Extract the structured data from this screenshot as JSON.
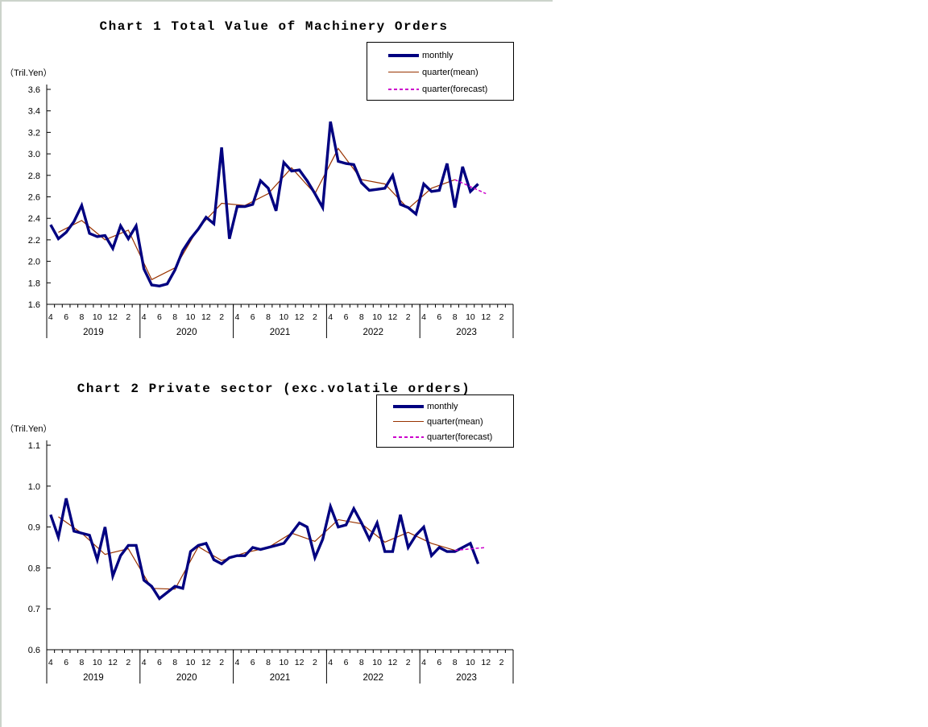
{
  "page": {
    "background": "#ffffff",
    "border_strip_color": "#ccd3cb"
  },
  "chart_data": [
    {
      "type": "line",
      "title": "Chart 1 Total Value of Machinery Orders",
      "ylabel": "（Tril.Yen）",
      "ylim": [
        1.6,
        3.6
      ],
      "ytick_step": 0.2,
      "ytick_labels": [
        "3.6",
        "3.4",
        "3.2",
        "3.0",
        "2.8",
        "2.6",
        "2.4",
        "2.2",
        "2.0",
        "1.8",
        "1.6"
      ],
      "x_axis": {
        "month_label_cycle": [
          "4",
          "6",
          "8",
          "10",
          "12",
          "2"
        ],
        "years": [
          "2019",
          "2020",
          "2021",
          "2022",
          "2023"
        ],
        "months_span": 60,
        "x_start_month": "2019-04",
        "last_monthly_point": "2023-11"
      },
      "grid": false,
      "legend_position": "top-right",
      "series_labels": [
        "monthly",
        "quarter(mean)",
        "quarter(forecast)"
      ],
      "series": [
        {
          "name": "monthly",
          "color": "#000080",
          "style": "thick-solid",
          "values": [
            2.34,
            2.21,
            2.27,
            2.37,
            2.52,
            2.26,
            2.23,
            2.24,
            2.12,
            2.33,
            2.21,
            2.33,
            1.93,
            1.78,
            1.77,
            1.79,
            1.92,
            2.1,
            2.21,
            2.3,
            2.41,
            2.35,
            3.06,
            2.21,
            2.51,
            2.51,
            2.53,
            2.75,
            2.68,
            2.47,
            2.92,
            2.84,
            2.85,
            2.75,
            2.63,
            2.5,
            3.3,
            2.93,
            2.91,
            2.9,
            2.73,
            2.66,
            2.67,
            2.68,
            2.8,
            2.53,
            2.5,
            2.44,
            2.72,
            2.65,
            2.66,
            2.91,
            2.5,
            2.88,
            2.65,
            2.72
          ]
        },
        {
          "name": "quarter(mean)",
          "color": "#993300",
          "style": "thin-solid",
          "plotted_at": "middle month of each quarter",
          "values": [
            2.27,
            2.38,
            2.2,
            2.29,
            1.83,
            1.94,
            2.31,
            2.54,
            2.52,
            2.63,
            2.87,
            2.63,
            3.05,
            2.76,
            2.72,
            2.49,
            2.68,
            2.76
          ]
        },
        {
          "name": "quarter(forecast)",
          "color": "#cc00cc",
          "style": "dashed",
          "forecast_value": 2.63
        }
      ]
    },
    {
      "type": "line",
      "title": "Chart 2 Private sector (exc.volatile orders)",
      "ylabel": "（Tril.Yen）",
      "ylim": [
        0.6,
        1.1
      ],
      "ytick_step": 0.1,
      "ytick_labels": [
        "1.1",
        "1.0",
        "0.9",
        "0.8",
        "0.7",
        "0.6"
      ],
      "x_axis": {
        "month_label_cycle": [
          "4",
          "6",
          "8",
          "10",
          "12",
          "2"
        ],
        "years": [
          "2019",
          "2020",
          "2021",
          "2022",
          "2023"
        ],
        "months_span": 60,
        "x_start_month": "2019-04",
        "last_monthly_point": "2023-11"
      },
      "grid": false,
      "legend_position": "top-right",
      "series_labels": [
        "monthly",
        "quarter(mean)",
        "quarter(forecast)"
      ],
      "series": [
        {
          "name": "monthly",
          "color": "#000080",
          "style": "thick-solid",
          "values": [
            0.93,
            0.875,
            0.97,
            0.89,
            0.885,
            0.88,
            0.82,
            0.9,
            0.78,
            0.83,
            0.855,
            0.855,
            0.77,
            0.755,
            0.725,
            0.74,
            0.755,
            0.75,
            0.84,
            0.855,
            0.86,
            0.82,
            0.81,
            0.825,
            0.83,
            0.83,
            0.85,
            0.845,
            0.85,
            0.855,
            0.86,
            0.885,
            0.91,
            0.9,
            0.825,
            0.87,
            0.95,
            0.9,
            0.905,
            0.945,
            0.91,
            0.87,
            0.91,
            0.84,
            0.84,
            0.93,
            0.85,
            0.88,
            0.9,
            0.83,
            0.85,
            0.84,
            0.84,
            0.85,
            0.86,
            0.81
          ]
        },
        {
          "name": "quarter(mean)",
          "color": "#993300",
          "style": "thin-solid",
          "plotted_at": "middle month of each quarter",
          "values": [
            0.925,
            0.885,
            0.833,
            0.847,
            0.75,
            0.748,
            0.852,
            0.818,
            0.837,
            0.85,
            0.885,
            0.865,
            0.918,
            0.908,
            0.863,
            0.887,
            0.86,
            0.843
          ]
        },
        {
          "name": "quarter(forecast)",
          "color": "#cc00cc",
          "style": "dashed",
          "forecast_value": 0.85
        }
      ]
    }
  ]
}
